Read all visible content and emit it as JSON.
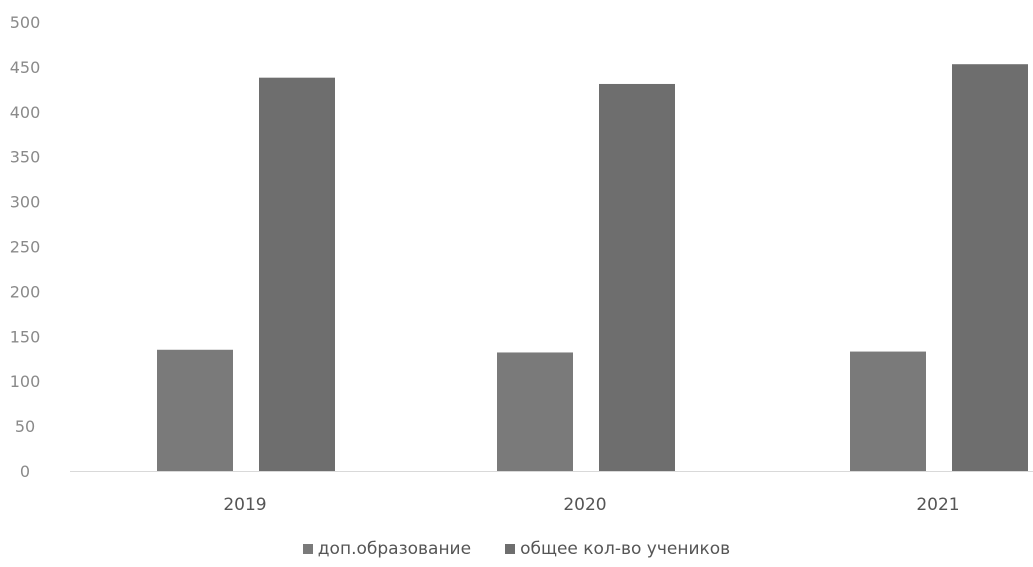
{
  "chart_data": {
    "type": "bar",
    "categories": [
      "2019",
      "2020",
      "2021"
    ],
    "series": [
      {
        "name": "доп.образование",
        "values": [
          135,
          132,
          133
        ],
        "color": "#7a7a7a"
      },
      {
        "name": "общее кол-во учеников",
        "values": [
          438,
          431,
          453
        ],
        "color": "#6e6e6e"
      }
    ],
    "yticks": [
      "0",
      "50",
      "100",
      "150",
      "200",
      "250",
      "300",
      "350",
      "400",
      "450",
      "500"
    ],
    "ylim": [
      0,
      500
    ],
    "grid": false,
    "legend_position": "bottom",
    "title": "",
    "xlabel": "",
    "ylabel": ""
  }
}
